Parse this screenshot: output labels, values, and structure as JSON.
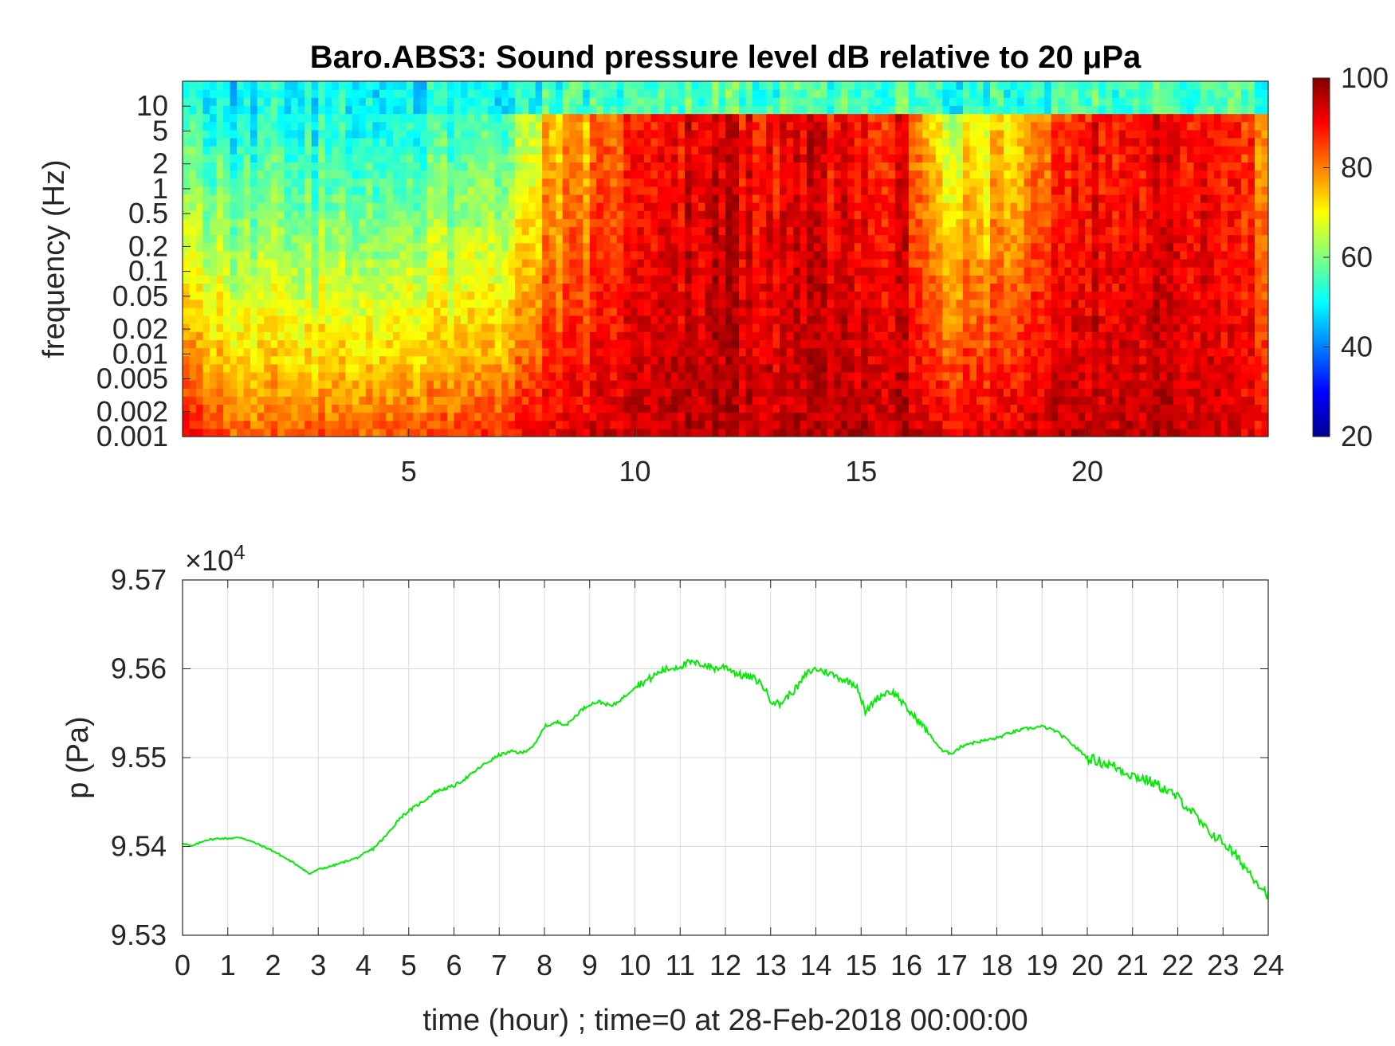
{
  "colors": {
    "line": "#00ee00",
    "axis": "#262626",
    "grid": "#d9d9d9",
    "colormap": "jet"
  },
  "chart_data": [
    {
      "type": "heatmap",
      "title": "Baro.ABS3: Sound pressure level dB relative to 20 μPa",
      "ylabel": "frequency (Hz)",
      "xlabel": "",
      "y_scale": "log",
      "xlim": [
        0,
        24
      ],
      "ylim": [
        0.001,
        20
      ],
      "x_ticks": [
        5,
        10,
        15,
        20
      ],
      "x_tick_labels": [
        "5",
        "10",
        "15",
        "20"
      ],
      "y_ticks": [
        0.001,
        0.002,
        0.005,
        0.01,
        0.02,
        0.05,
        0.1,
        0.2,
        0.5,
        1,
        2,
        5,
        10
      ],
      "y_tick_labels": [
        "0.001",
        "0.002",
        "0.005",
        "0.01",
        "0.02",
        "0.05",
        "0.1",
        "0.2",
        "0.5",
        "1",
        "2",
        "5",
        "10"
      ],
      "colorbar": {
        "range": [
          20,
          100
        ],
        "ticks": [
          20,
          40,
          60,
          80,
          100
        ],
        "tick_labels": [
          "20",
          "40",
          "60",
          "80",
          "100"
        ]
      },
      "level_profile": {
        "hours": [
          0,
          1,
          2,
          3,
          4,
          5,
          6,
          7,
          7.5,
          8,
          9,
          10,
          11,
          12,
          13,
          14,
          15,
          16,
          16.5,
          17,
          18,
          19,
          20,
          21,
          22,
          23,
          24
        ],
        "high_freq_level_db": [
          50,
          48,
          48,
          48,
          48,
          49,
          50,
          52,
          58,
          70,
          76,
          86,
          90,
          92,
          89,
          92,
          88,
          88,
          68,
          65,
          68,
          80,
          88,
          90,
          90,
          86,
          80
        ],
        "low_freq_level_db": [
          92,
          84,
          83,
          84,
          84,
          85,
          86,
          88,
          90,
          92,
          93,
          95,
          96,
          96,
          95,
          96,
          96,
          95,
          93,
          93,
          93,
          95,
          95,
          96,
          95,
          94,
          90
        ]
      }
    },
    {
      "type": "line",
      "title": "",
      "xlabel": "time (hour) ; time=0 at 28-Feb-2018 00:00:00",
      "ylabel": "p (Pa)",
      "exponent_label": "×10",
      "exponent_power": "4",
      "xlim": [
        0,
        24
      ],
      "ylim": [
        9.53,
        9.57
      ],
      "x_ticks": [
        0,
        1,
        2,
        3,
        4,
        5,
        6,
        7,
        8,
        9,
        10,
        11,
        12,
        13,
        14,
        15,
        16,
        17,
        18,
        19,
        20,
        21,
        22,
        23,
        24
      ],
      "x_tick_labels": [
        "0",
        "1",
        "2",
        "3",
        "4",
        "5",
        "6",
        "7",
        "8",
        "9",
        "10",
        "11",
        "12",
        "13",
        "14",
        "15",
        "16",
        "17",
        "18",
        "19",
        "20",
        "21",
        "22",
        "23",
        "24"
      ],
      "y_ticks": [
        9.53,
        9.54,
        9.55,
        9.56,
        9.57
      ],
      "y_tick_labels": [
        "9.53",
        "9.54",
        "9.55",
        "9.56",
        "9.57"
      ],
      "grid": true,
      "series": [
        {
          "x": [
            0,
            0.2,
            0.5,
            0.8,
            1.0,
            1.3,
            1.6,
            2.0,
            2.3,
            2.6,
            2.8,
            3.0,
            3.3,
            3.6,
            3.9,
            4.2,
            4.5,
            4.8,
            5.0,
            5.3,
            5.6,
            6.0,
            6.3,
            6.6,
            7.0,
            7.3,
            7.5,
            7.8,
            8.0,
            8.3,
            8.5,
            8.8,
            9.0,
            9.2,
            9.5,
            9.8,
            10.0,
            10.3,
            10.6,
            11.0,
            11.2,
            11.5,
            11.8,
            12.0,
            12.3,
            12.6,
            12.8,
            13.0,
            13.2,
            13.4,
            13.6,
            13.8,
            14.0,
            14.3,
            14.6,
            14.9,
            15.1,
            15.3,
            15.6,
            15.8,
            16.0,
            16.3,
            16.6,
            16.8,
            17.0,
            17.3,
            17.6,
            18.0,
            18.3,
            18.6,
            19.0,
            19.3,
            19.6,
            20.0,
            20.3,
            20.6,
            21.0,
            21.3,
            21.6,
            22.0,
            22.3,
            22.6,
            23.0,
            23.3,
            23.6,
            24.0
          ],
          "values": [
            9.5404,
            9.54,
            9.5407,
            9.5409,
            9.5409,
            9.541,
            9.5404,
            9.5395,
            9.5386,
            9.5377,
            9.5369,
            9.5374,
            9.5378,
            9.5383,
            9.5388,
            9.5397,
            9.5412,
            9.5432,
            9.544,
            9.545,
            9.5462,
            9.5468,
            9.5478,
            9.549,
            9.5503,
            9.5507,
            9.5505,
            9.5515,
            9.5535,
            9.554,
            9.5537,
            9.5553,
            9.556,
            9.5563,
            9.5558,
            9.557,
            9.558,
            9.5588,
            9.5598,
            9.5603,
            9.5607,
            9.5605,
            9.56,
            9.5603,
            9.5593,
            9.559,
            9.5583,
            9.5565,
            9.556,
            9.557,
            9.558,
            9.5595,
            9.56,
            9.5595,
            9.5588,
            9.5582,
            9.555,
            9.5565,
            9.5575,
            9.557,
            9.5555,
            9.554,
            9.552,
            9.5507,
            9.5505,
            9.5515,
            9.5518,
            9.5522,
            9.5528,
            9.5532,
            9.5535,
            9.553,
            9.5518,
            9.55,
            9.5495,
            9.549,
            9.548,
            9.5475,
            9.5468,
            9.5455,
            9.544,
            9.542,
            9.5405,
            9.5388,
            9.537,
            9.5345
          ]
        }
      ]
    }
  ]
}
